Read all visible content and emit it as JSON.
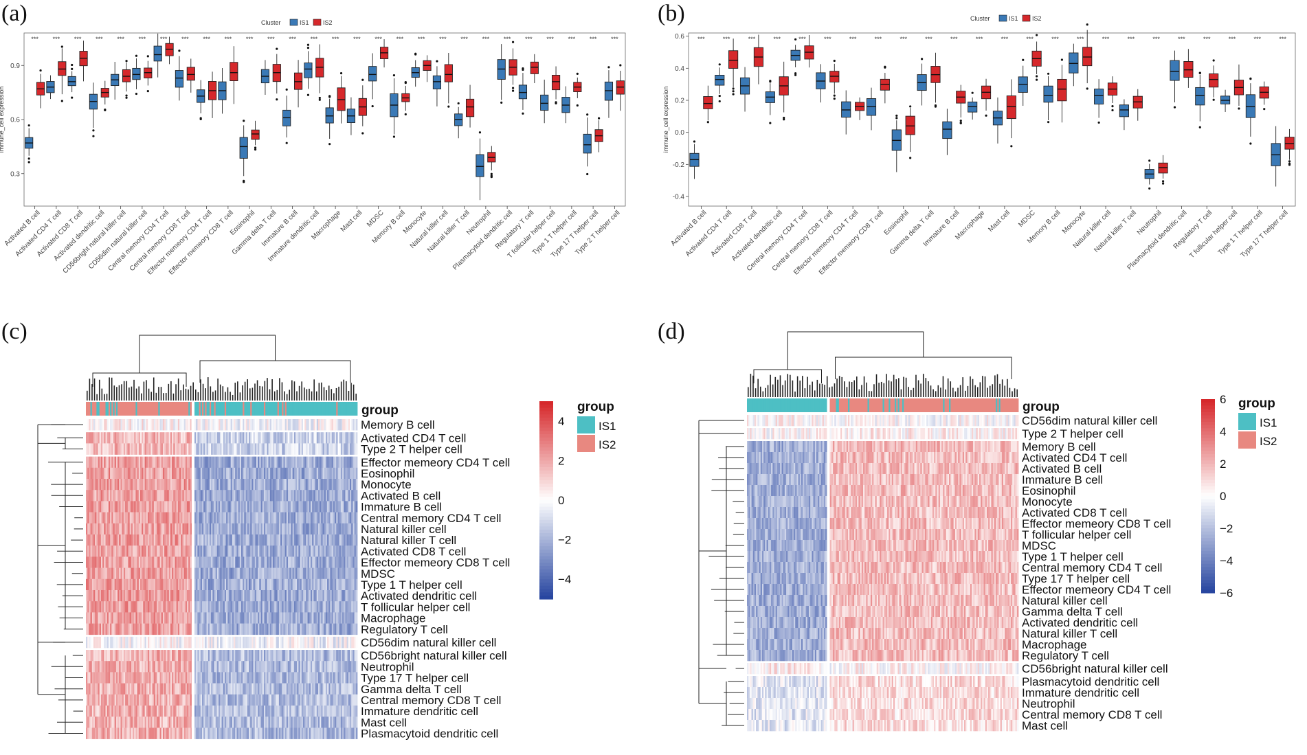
{
  "figure": {
    "panel_labels": [
      "(a)",
      "(b)",
      "(c)",
      "(d)"
    ]
  },
  "chart_data": [
    {
      "type": "box",
      "panel": "(a)",
      "legend": {
        "title": "Cluster",
        "entries": [
          "IS1",
          "IS2"
        ],
        "colors": [
          "#3a79b6",
          "#d6282b"
        ],
        "placement": "top-center"
      },
      "ylabel": "immune_cell expression",
      "ylim": [
        0.12,
        1.08
      ],
      "yticks": [
        0.3,
        0.6,
        0.9
      ],
      "significance": "***",
      "categories": [
        "Activated B cell",
        "Activated CD4 T cell",
        "Activated CD8 T cell",
        "Activated dendritic cell",
        "CD56bright natural killer cell",
        "CD56dim natural killer cell",
        "Central memory CD4 T cell",
        "Central memory CD8 T cell",
        "Effector memeory CD4 T cell",
        "Effector memeory CD8 T cell",
        "Eosinophil",
        "Gamma delta T cell",
        "Immature  B cell",
        "Immature dendritic cell",
        "Macrophage",
        "Mast cell",
        "MDSC",
        "Memory B cell",
        "Monocyte",
        "Natural killer cell",
        "Natural killer T cell",
        "Neutrophil",
        "Plasmacytoid dendritic cell",
        "Regulatory T cell",
        "T follicular helper cell",
        "Type 1 T helper cell",
        "Type 17 T helper cell",
        "Type 2 T helper cell"
      ],
      "series": [
        {
          "name": "IS1",
          "median": [
            0.47,
            0.78,
            0.81,
            0.7,
            0.82,
            0.85,
            0.96,
            0.83,
            0.73,
            0.76,
            0.45,
            0.84,
            0.61,
            0.88,
            0.62,
            0.62,
            0.85,
            0.68,
            0.86,
            0.81,
            0.6,
            0.34,
            0.88,
            0.75,
            0.69,
            0.68,
            0.46,
            0.76
          ]
        },
        {
          "name": "IS2",
          "median": [
            0.77,
            0.88,
            0.94,
            0.75,
            0.84,
            0.86,
            0.99,
            0.85,
            0.76,
            0.86,
            0.52,
            0.86,
            0.81,
            0.89,
            0.71,
            0.67,
            0.97,
            0.72,
            0.9,
            0.85,
            0.67,
            0.39,
            0.89,
            0.89,
            0.81,
            0.78,
            0.51,
            0.78
          ]
        }
      ]
    },
    {
      "type": "box",
      "panel": "(b)",
      "legend": {
        "title": "Cluster",
        "entries": [
          "IS1",
          "IS2"
        ],
        "colors": [
          "#3a79b6",
          "#d6282b"
        ],
        "placement": "top-center"
      },
      "ylabel": "immune_cell expression",
      "ylim": [
        -0.46,
        0.62
      ],
      "yticks": [
        -0.4,
        -0.2,
        0.0,
        0.2,
        0.4,
        0.6
      ],
      "significance": "***",
      "categories": [
        "Activated B cell",
        "Activated CD4 T cell",
        "Activated CD8 T cell",
        "Activated dendritic cell",
        "Central memory CD4 T cell",
        "Central memory CD8 T cell",
        "Effector memeory CD4 T cell",
        "Effector memeory CD8 T cell",
        "Eosinophil",
        "Gamma delta T cell",
        "Immature  B cell",
        "Macrophage",
        "Mast cell",
        "MDSC",
        "Memory B cell",
        "Monocyte",
        "Natural killer cell",
        "Natural killer T cell",
        "Neutrophil",
        "Plasmacytoid dendritic cell",
        "Regulatory T cell",
        "T follicular helper cell",
        "Type 1 T helper cell",
        "Type 17 T helper cell"
      ],
      "series": [
        {
          "name": "IS1",
          "median": [
            -0.17,
            0.33,
            0.29,
            0.22,
            0.48,
            0.32,
            0.14,
            0.16,
            -0.05,
            0.31,
            0.02,
            0.16,
            0.09,
            0.3,
            0.23,
            0.43,
            0.23,
            0.14,
            -0.26,
            0.38,
            0.23,
            0.2,
            0.16,
            -0.14
          ]
        },
        {
          "name": "IS2",
          "median": [
            0.18,
            0.45,
            0.47,
            0.29,
            0.5,
            0.35,
            0.16,
            0.3,
            0.04,
            0.36,
            0.22,
            0.25,
            0.16,
            0.46,
            0.27,
            0.47,
            0.27,
            0.19,
            -0.22,
            0.39,
            0.33,
            0.28,
            0.25,
            -0.07
          ]
        }
      ]
    },
    {
      "type": "heatmap",
      "panel": "(c)",
      "group_label": "group",
      "group_legend": {
        "title": "group",
        "entries": [
          "IS1",
          "IS2"
        ],
        "colors": [
          "#4dbfc4",
          "#e88880"
        ]
      },
      "color_scale": {
        "ticks": [
          4,
          2,
          0,
          -2,
          -4
        ],
        "max": 5,
        "min": -5
      },
      "columns": {
        "left_cluster": "IS2-dominant",
        "right_cluster": "IS1-dominant"
      },
      "row_blocks": [
        [
          "Memory B cell"
        ],
        [
          "Activated CD4 T cell",
          "Type 2 T helper cell"
        ],
        [
          "Effector memeory CD4 T cell",
          "Eosinophil",
          "Monocyte",
          "Activated B cell",
          "Immature  B cell",
          "Central memory CD4 T cell",
          "Natural killer cell",
          "Natural killer T cell",
          "Activated CD8 T cell",
          "Effector memeory CD8 T cell",
          "MDSC",
          "Type 1 T helper cell",
          "Activated dendritic cell",
          "T follicular helper cell",
          "Macrophage",
          "Regulatory T cell"
        ],
        [
          "CD56dim natural killer cell"
        ],
        [
          "CD56bright natural killer cell",
          "Neutrophil",
          "Type 17 T helper cell",
          "Gamma delta T cell",
          "Central memory CD8 T cell",
          "Immature dendritic cell",
          "Mast cell",
          "Plasmacytoid dendritic cell"
        ]
      ]
    },
    {
      "type": "heatmap",
      "panel": "(d)",
      "group_label": "group",
      "group_legend": {
        "title": "group",
        "entries": [
          "IS1",
          "IS2"
        ],
        "colors": [
          "#4dbfc4",
          "#e88880"
        ]
      },
      "color_scale": {
        "ticks": [
          6,
          4,
          2,
          0,
          -2,
          -4,
          -6
        ],
        "max": 6,
        "min": -6
      },
      "columns": {
        "left_cluster": "IS1",
        "right_cluster": "IS2"
      },
      "row_blocks": [
        [
          "CD56dim natural killer cell"
        ],
        [
          "Type 2 T helper cell"
        ],
        [
          "Memory B cell",
          "Activated CD4 T cell",
          "Activated B cell",
          "Immature  B cell",
          "Eosinophil",
          "Monocyte",
          "Activated CD8 T cell",
          "Effector memeory CD8 T cell",
          "T follicular helper cell",
          "MDSC",
          "Type 1 T helper cell",
          "Central memory CD4 T cell",
          "Type 17 T helper cell",
          "Effector memeory CD4 T cell",
          "Natural killer cell",
          "Gamma delta T cell",
          "Activated dendritic cell",
          "Natural killer T cell",
          "Macrophage",
          "Regulatory T cell"
        ],
        [
          "CD56bright natural killer cell"
        ],
        [
          "Plasmacytoid dendritic cell",
          "Immature dendritic cell",
          "Neutrophil",
          "Central memory CD8 T cell",
          "Mast cell"
        ]
      ]
    }
  ]
}
